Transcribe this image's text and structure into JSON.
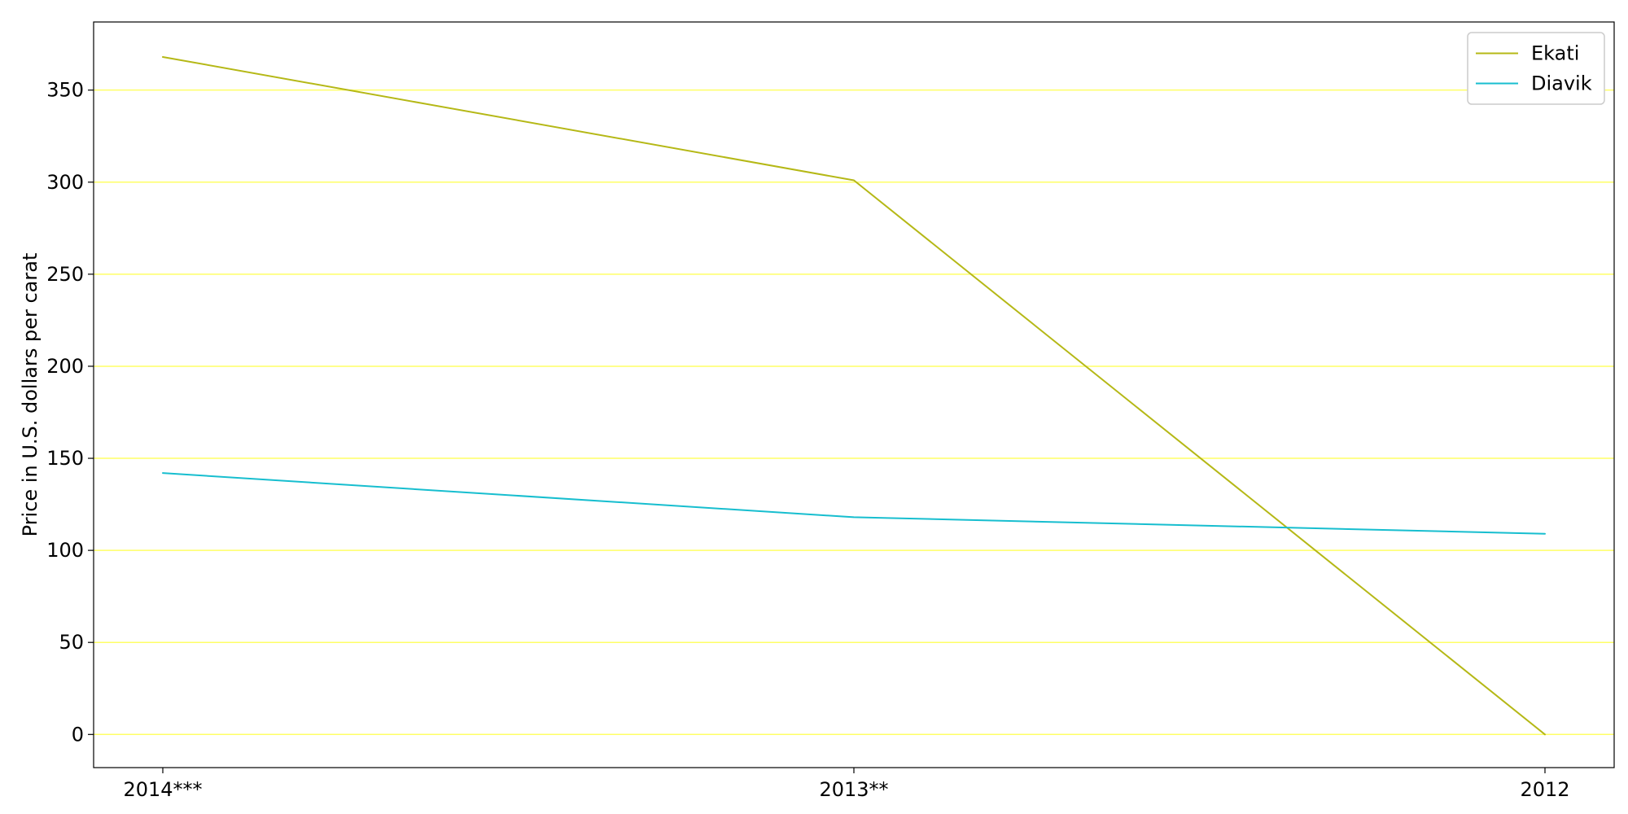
{
  "chart_data": {
    "type": "line",
    "title": "",
    "xlabel": "",
    "ylabel": "Price in U.S. dollars per carat",
    "categories": [
      "2014***",
      "2013**",
      "2012"
    ],
    "series": [
      {
        "name": "Ekati",
        "values": [
          368,
          301,
          0
        ],
        "color": "#b5b816"
      },
      {
        "name": "Diavik",
        "values": [
          142,
          118,
          109
        ],
        "color": "#17becf"
      }
    ],
    "ylim": [
      -18,
      387
    ],
    "yticks": [
      0,
      50,
      100,
      150,
      200,
      250,
      300,
      350
    ],
    "grid": {
      "axis": "y",
      "color": "#ffff66"
    },
    "legend": {
      "placement": "top-right"
    }
  }
}
